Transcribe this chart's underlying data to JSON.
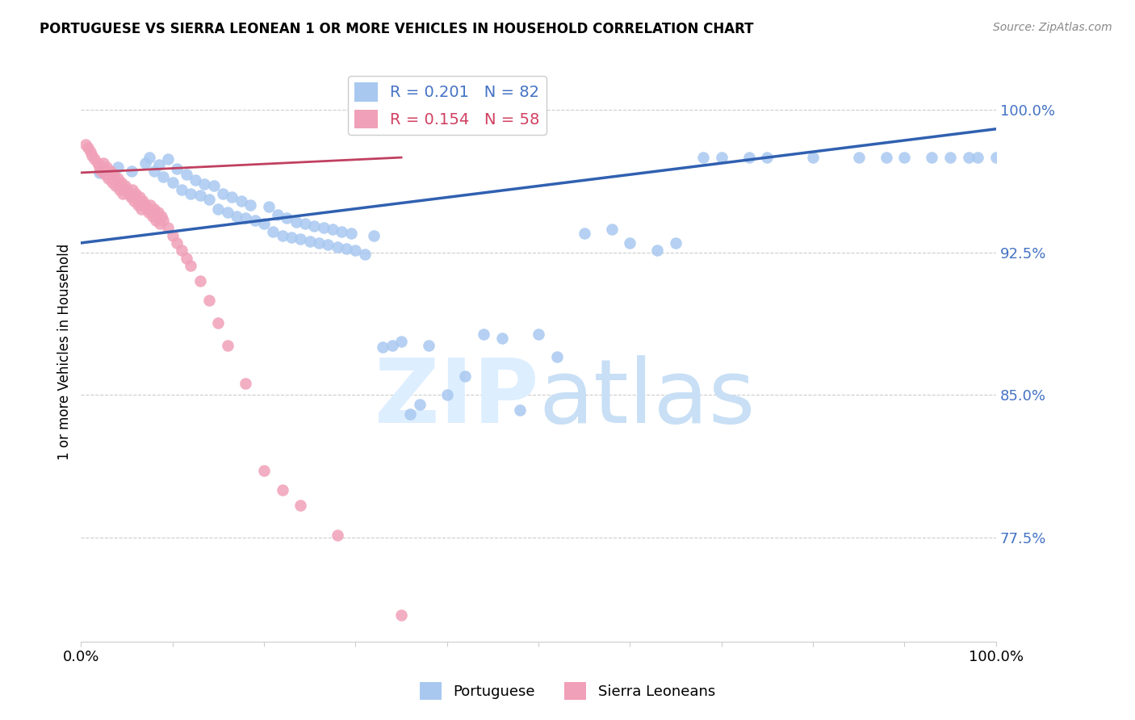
{
  "title": "PORTUGUESE VS SIERRA LEONEAN 1 OR MORE VEHICLES IN HOUSEHOLD CORRELATION CHART",
  "source": "Source: ZipAtlas.com",
  "ylabel": "1 or more Vehicles in Household",
  "xlim": [
    0.0,
    1.0
  ],
  "ylim": [
    0.72,
    1.025
  ],
  "yticks": [
    0.775,
    0.85,
    0.925,
    1.0
  ],
  "ytick_labels": [
    "77.5%",
    "85.0%",
    "92.5%",
    "100.0%"
  ],
  "xticks": [
    0.0,
    0.1,
    0.2,
    0.3,
    0.4,
    0.5,
    0.6,
    0.7,
    0.8,
    0.9,
    1.0
  ],
  "xtick_labels": [
    "0.0%",
    "",
    "",
    "",
    "",
    "",
    "",
    "",
    "",
    "",
    "100.0%"
  ],
  "blue_R": 0.201,
  "blue_N": 82,
  "pink_R": 0.154,
  "pink_N": 58,
  "blue_color": "#a8c8f0",
  "pink_color": "#f0a0b8",
  "blue_line_color": "#3060b0",
  "pink_line_color": "#c04060",
  "watermark_color": "#ddeeff",
  "blue_line_x0": 0.0,
  "blue_line_y0": 0.93,
  "blue_line_x1": 1.0,
  "blue_line_y1": 0.99,
  "pink_line_x0": 0.0,
  "pink_line_y0": 0.967,
  "pink_line_x1": 0.35,
  "pink_line_y1": 0.975,
  "blue_scatter_x": [
    0.02,
    0.04,
    0.055,
    0.07,
    0.075,
    0.08,
    0.085,
    0.09,
    0.095,
    0.1,
    0.105,
    0.11,
    0.115,
    0.12,
    0.125,
    0.13,
    0.135,
    0.14,
    0.145,
    0.15,
    0.155,
    0.16,
    0.165,
    0.17,
    0.175,
    0.18,
    0.185,
    0.19,
    0.2,
    0.205,
    0.21,
    0.215,
    0.22,
    0.225,
    0.23,
    0.235,
    0.24,
    0.245,
    0.25,
    0.255,
    0.26,
    0.265,
    0.27,
    0.275,
    0.28,
    0.285,
    0.29,
    0.295,
    0.3,
    0.31,
    0.32,
    0.33,
    0.34,
    0.35,
    0.36,
    0.37,
    0.38,
    0.4,
    0.42,
    0.44,
    0.46,
    0.48,
    0.5,
    0.52,
    0.55,
    0.58,
    0.6,
    0.63,
    0.65,
    0.68,
    0.7,
    0.73,
    0.75,
    0.8,
    0.85,
    0.88,
    0.9,
    0.93,
    0.95,
    0.97,
    0.98,
    1.0
  ],
  "blue_scatter_y": [
    0.967,
    0.97,
    0.968,
    0.972,
    0.975,
    0.968,
    0.971,
    0.965,
    0.974,
    0.962,
    0.969,
    0.958,
    0.966,
    0.956,
    0.963,
    0.955,
    0.961,
    0.953,
    0.96,
    0.948,
    0.956,
    0.946,
    0.954,
    0.944,
    0.952,
    0.943,
    0.95,
    0.942,
    0.94,
    0.949,
    0.936,
    0.945,
    0.934,
    0.943,
    0.933,
    0.941,
    0.932,
    0.94,
    0.931,
    0.939,
    0.93,
    0.938,
    0.929,
    0.937,
    0.928,
    0.936,
    0.927,
    0.935,
    0.926,
    0.924,
    0.934,
    0.875,
    0.876,
    0.878,
    0.84,
    0.845,
    0.876,
    0.85,
    0.86,
    0.882,
    0.88,
    0.842,
    0.882,
    0.87,
    0.935,
    0.937,
    0.93,
    0.926,
    0.93,
    0.975,
    0.975,
    0.975,
    0.975,
    0.975,
    0.975,
    0.975,
    0.975,
    0.975,
    0.975,
    0.975,
    0.975,
    0.975
  ],
  "pink_scatter_x": [
    0.005,
    0.008,
    0.01,
    0.012,
    0.015,
    0.018,
    0.02,
    0.022,
    0.024,
    0.026,
    0.028,
    0.03,
    0.032,
    0.034,
    0.036,
    0.038,
    0.04,
    0.042,
    0.044,
    0.046,
    0.048,
    0.05,
    0.052,
    0.054,
    0.056,
    0.058,
    0.06,
    0.062,
    0.064,
    0.066,
    0.068,
    0.07,
    0.072,
    0.074,
    0.076,
    0.078,
    0.08,
    0.082,
    0.084,
    0.086,
    0.088,
    0.09,
    0.095,
    0.1,
    0.105,
    0.11,
    0.115,
    0.12,
    0.13,
    0.14,
    0.15,
    0.16,
    0.18,
    0.2,
    0.22,
    0.24,
    0.28,
    0.35
  ],
  "pink_scatter_y": [
    0.982,
    0.98,
    0.978,
    0.976,
    0.974,
    0.972,
    0.97,
    0.968,
    0.972,
    0.966,
    0.97,
    0.964,
    0.968,
    0.962,
    0.966,
    0.96,
    0.964,
    0.958,
    0.962,
    0.956,
    0.96,
    0.958,
    0.956,
    0.954,
    0.958,
    0.952,
    0.956,
    0.95,
    0.954,
    0.948,
    0.952,
    0.95,
    0.948,
    0.946,
    0.95,
    0.944,
    0.948,
    0.942,
    0.946,
    0.94,
    0.944,
    0.942,
    0.938,
    0.934,
    0.93,
    0.926,
    0.922,
    0.918,
    0.91,
    0.9,
    0.888,
    0.876,
    0.856,
    0.81,
    0.8,
    0.792,
    0.776,
    0.734
  ]
}
